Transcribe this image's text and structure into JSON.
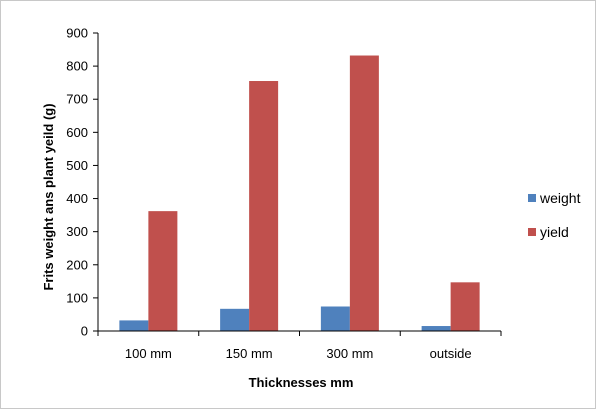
{
  "chart_data": {
    "type": "bar",
    "categories": [
      "100 mm",
      "150 mm",
      "300 mm",
      "outside"
    ],
    "series": [
      {
        "name": "weight",
        "color": "#4f81bd",
        "values": [
          32,
          67,
          74,
          15
        ]
      },
      {
        "name": "yield",
        "color": "#c0504d",
        "values": [
          362,
          755,
          832,
          147
        ]
      }
    ],
    "xlabel": "Thicknesses mm",
    "ylabel": "Frits weight ans plant yeild (g)",
    "ylim": [
      0,
      900
    ],
    "yticks": [
      0,
      100,
      200,
      300,
      400,
      500,
      600,
      700,
      800,
      900
    ],
    "grid": false,
    "legend_position": "right"
  }
}
